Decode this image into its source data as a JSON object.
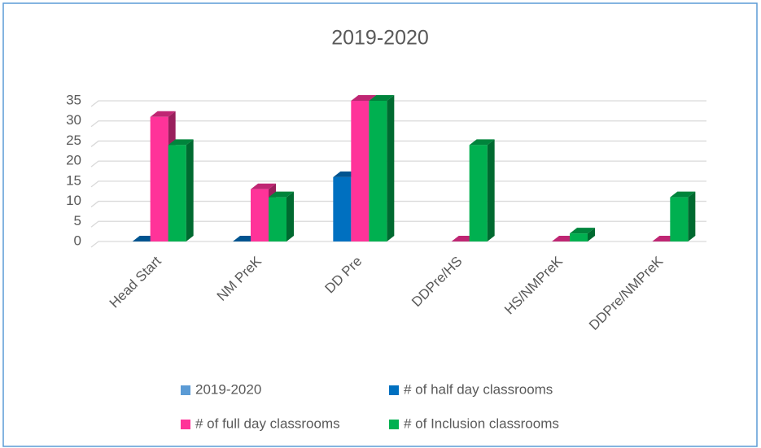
{
  "chart_data": {
    "type": "bar3d",
    "title": "2019-2020",
    "categories": [
      "Head Start",
      "NM PreK",
      "DD Pre",
      "DDPre/HS",
      "HS/NMPreK",
      "DDPre/NMPreK"
    ],
    "series": [
      {
        "name": "2019-2020",
        "color": "#5b9bd5",
        "values": [
          null,
          null,
          null,
          null,
          null,
          null
        ]
      },
      {
        "name": "# of half day classrooms",
        "color": "#0070c0",
        "values": [
          0,
          0,
          16,
          null,
          null,
          null
        ]
      },
      {
        "name": "# of full day classrooms",
        "color": "#ff3399",
        "values": [
          31,
          13,
          35,
          0,
          0,
          0
        ]
      },
      {
        "name": "# of Inclusion classrooms",
        "color": "#00b050",
        "values": [
          24,
          11,
          35,
          24,
          2,
          11
        ]
      }
    ],
    "ylim": [
      0,
      35
    ],
    "yticks": [
      0,
      5,
      10,
      15,
      20,
      25,
      30,
      35
    ],
    "grid": true,
    "legend": "bottom"
  }
}
